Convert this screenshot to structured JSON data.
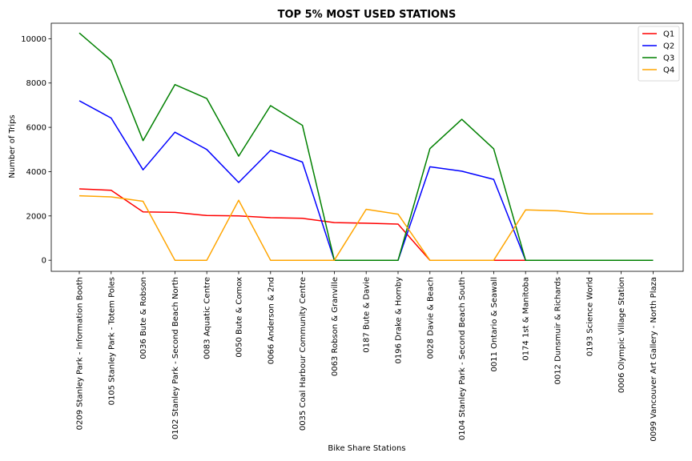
{
  "chart_data": {
    "type": "line",
    "title": "TOP 5% MOST USED STATIONS",
    "xlabel": "Bike Share Stations",
    "ylabel": "Number of Trips",
    "ylim": [
      -500,
      10700
    ],
    "yticks": [
      0,
      2000,
      4000,
      6000,
      8000,
      10000
    ],
    "grid": false,
    "legend_position": "top-right",
    "categories": [
      "0209 Stanley Park - Information Booth",
      "0105 Stanley Park - Totem Poles",
      "0036 Bute & Robson",
      "0102 Stanley Park - Second Beach North",
      "0083 Aquatic Centre",
      "0050 Bute & Comox",
      "0066 Anderson & 2nd",
      "0035 Coal Harbour Community Centre",
      "0063 Robson & Granville",
      "0187 Bute & Davie",
      "0196 Drake & Hornby",
      "0028 Davie & Beach",
      "0104 Stanley Park - Second Beach South",
      "0011 Ontario & Seawall",
      "0174 1st & Manitoba",
      "0012 Dunsmuir & Richards",
      "0193 Science World",
      "0006 Olympic Village Station",
      "0099 Vancouver Art Gallery - North Plaza"
    ],
    "series": [
      {
        "name": "Q1",
        "color": "#ff0000",
        "values": [
          3220,
          3160,
          2180,
          2160,
          2020,
          2000,
          1920,
          1890,
          1700,
          1670,
          1630,
          0,
          0,
          0,
          0,
          0,
          0,
          0,
          0
        ]
      },
      {
        "name": "Q2",
        "color": "#0000ff",
        "values": [
          7200,
          6420,
          4080,
          5780,
          5000,
          3510,
          4960,
          4430,
          0,
          0,
          0,
          4220,
          4020,
          3650,
          0,
          0,
          0,
          0,
          0
        ]
      },
      {
        "name": "Q3",
        "color": "#008000",
        "values": [
          10260,
          9020,
          5400,
          7930,
          7300,
          4700,
          6980,
          6090,
          0,
          0,
          0,
          5040,
          6360,
          5030,
          0,
          0,
          0,
          0,
          0
        ]
      },
      {
        "name": "Q4",
        "color": "#ffa500",
        "values": [
          2910,
          2860,
          2660,
          0,
          0,
          2710,
          0,
          0,
          0,
          2300,
          2080,
          0,
          0,
          0,
          2270,
          2230,
          2090,
          2090,
          2090
        ]
      }
    ]
  }
}
